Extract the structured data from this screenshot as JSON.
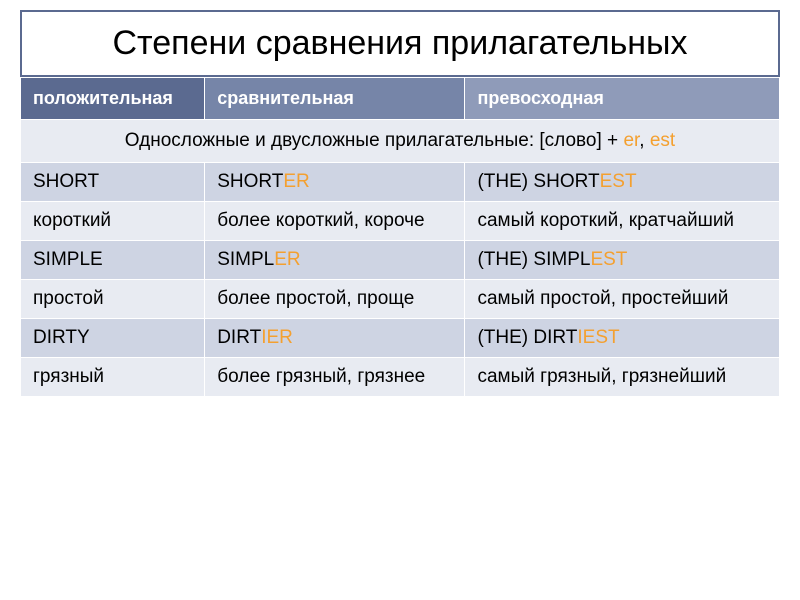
{
  "title": "Степени сравнения прилагательных",
  "colors": {
    "header1": "#5b6a90",
    "header2": "#7685a8",
    "header3": "#8f9bb9",
    "row_light": "#e8ebf2",
    "row_dark": "#ced4e3",
    "suffix": "#f4a030",
    "title_border": "#5b6a90"
  },
  "headers": {
    "col1": "положительная",
    "col2": "сравнительная",
    "col3": "превосходная"
  },
  "section": {
    "prefix": "Односложные и двусложные прилагательные: [слово] + ",
    "er": "er",
    "comma": ", ",
    "est": "est"
  },
  "rows": [
    {
      "shade": "dark",
      "c1": "SHORT",
      "c2_base": "SHORT",
      "c2_suf": "ER",
      "c3_prefix": "(THE) ",
      "c3_base": "SHORT",
      "c3_suf": "EST"
    },
    {
      "shade": "light",
      "c1": "короткий",
      "c2_base": "более короткий, короче",
      "c2_suf": "",
      "c3_prefix": "",
      "c3_base": "самый короткий, кратчайший",
      "c3_suf": ""
    },
    {
      "shade": "dark",
      "c1": "SIMPLE",
      "c2_base": "SIMPL",
      "c2_suf": "ER",
      "c3_prefix": "(THE) ",
      "c3_base": "SIMPL",
      "c3_suf": "EST"
    },
    {
      "shade": "light",
      "c1": "простой",
      "c2_base": "более простой, проще",
      "c2_suf": "",
      "c3_prefix": "",
      "c3_base": "простейший",
      "c3_suf": ""
    },
    {
      "shade": "dark",
      "c1": "DIRTY",
      "c2_base": "DIRT",
      "c2_suf": "IER",
      "c3_prefix": "(THE) ",
      "c3_base": "DIRT",
      "c3_suf": "IEST"
    },
    {
      "shade": "light",
      "c1": "грязный",
      "c2_base": "более грязный, грязнее",
      "c2_suf": "",
      "c3_prefix": "",
      "c3_base": "самый грязный, грязнейший",
      "c3_suf": ""
    }
  ],
  "simple_c3_prefix": "самый простой, "
}
